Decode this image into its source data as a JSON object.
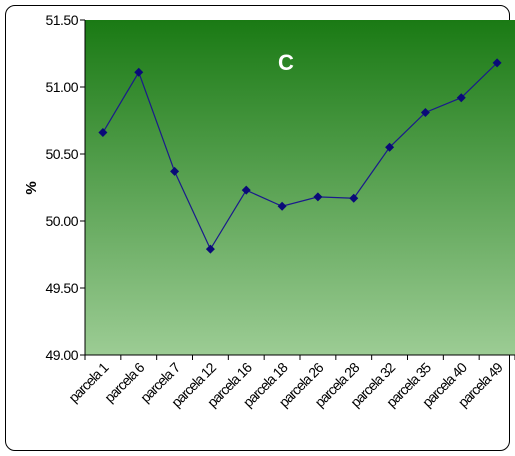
{
  "chart_data": {
    "type": "line",
    "title": "C",
    "xlabel": "",
    "ylabel": "%",
    "ylim": [
      49.0,
      51.5
    ],
    "yticks": [
      "49.00",
      "49.50",
      "50.00",
      "50.50",
      "51.00",
      "51.50"
    ],
    "categories": [
      "parcela 1",
      "parcela 6",
      "parcela 7",
      "parcela 12",
      "parcela 16",
      "parcela 18",
      "parcela 26",
      "parcela 28",
      "parcela 32",
      "parcela 35",
      "parcela 40",
      "parcela 49"
    ],
    "series": [
      {
        "values": [
          50.66,
          51.11,
          50.37,
          49.79,
          50.23,
          50.11,
          50.18,
          50.17,
          50.55,
          50.81,
          50.92,
          51.18
        ]
      }
    ],
    "grid": false,
    "legend": "none",
    "colors": {
      "line": "#1a1a8c",
      "marker": "#0a0a78",
      "plot_top": "#1a7a14",
      "plot_bottom": "#9ccc94"
    }
  }
}
